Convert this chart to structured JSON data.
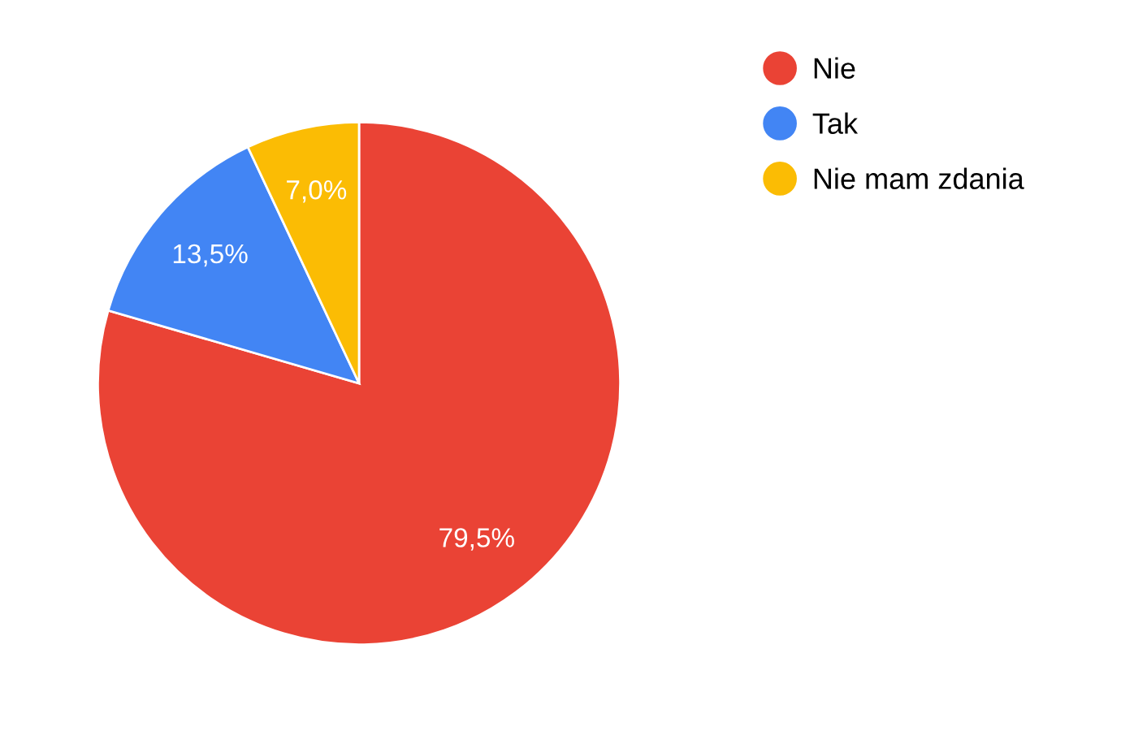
{
  "chart_data": {
    "type": "pie",
    "categories": [
      "Nie",
      "Tak",
      "Nie mam zdania"
    ],
    "values": [
      79.5,
      13.5,
      7.0
    ],
    "colors": [
      "#ea4335",
      "#4285f4",
      "#fbbc04"
    ],
    "value_labels": [
      "79,5%",
      "13,5%",
      "7,0%"
    ],
    "legend": "top right"
  }
}
